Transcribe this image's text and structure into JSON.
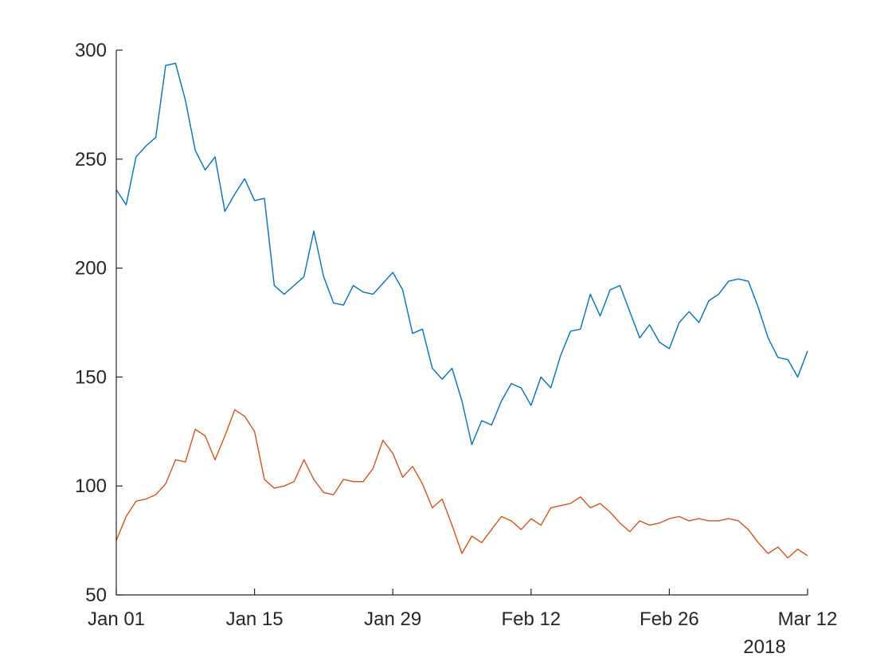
{
  "chart_data": {
    "type": "line",
    "x_start": "2018-01-01",
    "x_end": "2018-03-12",
    "x_ticks": [
      {
        "date": "2018-01-01",
        "label": "Jan 01"
      },
      {
        "date": "2018-01-15",
        "label": "Jan 15"
      },
      {
        "date": "2018-01-29",
        "label": "Jan 29"
      },
      {
        "date": "2018-02-12",
        "label": "Feb 12"
      },
      {
        "date": "2018-02-26",
        "label": "Feb 26"
      },
      {
        "date": "2018-03-12",
        "label": "Mar 12"
      }
    ],
    "x_secondary_label": "2018",
    "ylim": [
      50,
      300
    ],
    "y_ticks": [
      50,
      100,
      150,
      200,
      250,
      300
    ],
    "grid": false,
    "series": [
      {
        "color": "#0072BD",
        "values": [
          236,
          229,
          251,
          256,
          260,
          293,
          294,
          277,
          254,
          245,
          251,
          226,
          234,
          241,
          231,
          232,
          192,
          188,
          192,
          196,
          217,
          196,
          184,
          183,
          192,
          189,
          188,
          193,
          198,
          190,
          170,
          172,
          154,
          149,
          154,
          139,
          119,
          130,
          128,
          139,
          147,
          145,
          137,
          150,
          145,
          160,
          171,
          172,
          188,
          178,
          190,
          192,
          180,
          168,
          174,
          166,
          163,
          175,
          180,
          175,
          185,
          188,
          194,
          195,
          194,
          182,
          168,
          159,
          158,
          150,
          162
        ]
      },
      {
        "color": "#D95319",
        "values": [
          75,
          86,
          93,
          94,
          96,
          101,
          112,
          111,
          126,
          123,
          112,
          123,
          135,
          132,
          125,
          103,
          99,
          100,
          102,
          112,
          103,
          97,
          96,
          103,
          102,
          102,
          108,
          121,
          115,
          104,
          109,
          101,
          90,
          94,
          82,
          69,
          77,
          74,
          80,
          86,
          84,
          80,
          85,
          82,
          90,
          91,
          92,
          95,
          90,
          92,
          88,
          83,
          79,
          84,
          82,
          83,
          85,
          86,
          84,
          85,
          84,
          84,
          85,
          84,
          80,
          74,
          69,
          72,
          67,
          71,
          68
        ]
      }
    ]
  }
}
